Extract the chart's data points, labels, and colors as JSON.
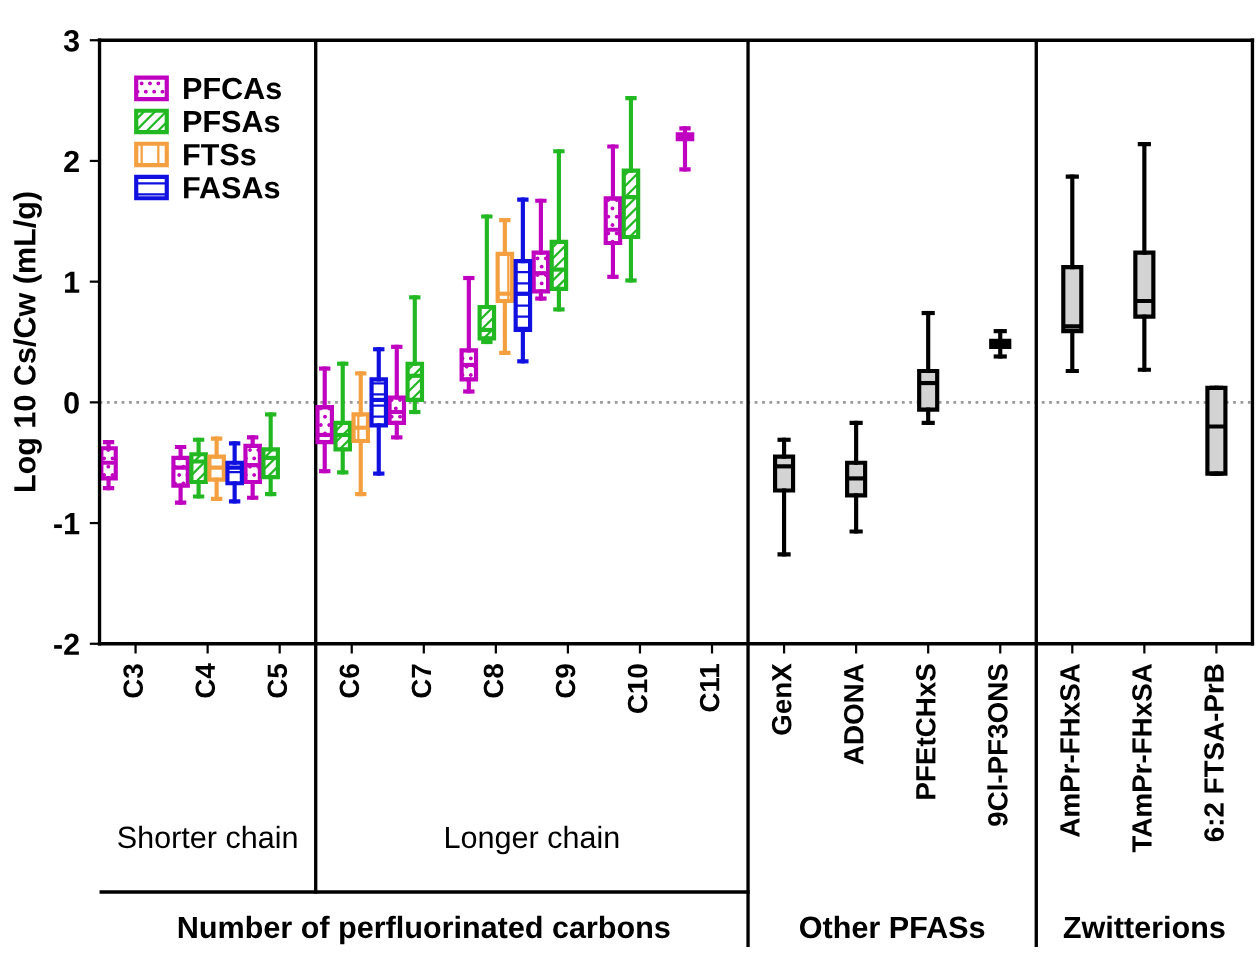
{
  "chart_data": {
    "type": "box",
    "ylabel": "Log 10 Cs/Cw (mL/g)",
    "categories": [
      "C3",
      "C4",
      "C5",
      "C6",
      "C7",
      "C8",
      "C9",
      "C10",
      "C11",
      "GenX",
      "ADONA",
      "PFEtCHxS",
      "9Cl-PF3ONS",
      "AmPr-FHxSA",
      "TAmPr-FHxSA",
      "6:2 FTSA-PrB"
    ],
    "ylim": [
      -2,
      3
    ],
    "yticks": [
      -2,
      -1,
      0,
      1,
      2,
      3
    ],
    "grid": false,
    "legend": "top left",
    "series": [
      {
        "name": "PFCAs",
        "color": "#c000c0",
        "boxes": [
          {
            "low": -0.71,
            "q1": -0.63,
            "median": -0.5,
            "q3": -0.38,
            "high": -0.33
          },
          {
            "low": -0.83,
            "q1": -0.69,
            "median": -0.54,
            "q3": -0.46,
            "high": -0.37
          },
          {
            "low": -0.79,
            "q1": -0.66,
            "median": -0.52,
            "q3": -0.36,
            "high": -0.29
          },
          {
            "low": -0.57,
            "q1": -0.33,
            "median": -0.27,
            "q3": -0.04,
            "high": 0.28
          },
          {
            "low": -0.29,
            "q1": -0.17,
            "median": -0.08,
            "q3": 0.04,
            "high": 0.46
          },
          {
            "low": 0.09,
            "q1": 0.19,
            "median": 0.31,
            "q3": 0.43,
            "high": 1.03
          },
          {
            "low": 0.86,
            "q1": 0.92,
            "median": 1.07,
            "q3": 1.24,
            "high": 1.67
          },
          {
            "low": 1.04,
            "q1": 1.32,
            "median": 1.43,
            "q3": 1.69,
            "high": 2.12
          },
          {
            "low": 1.93,
            "q1": 2.18,
            "median": 2.2,
            "q3": 2.22,
            "high": 2.27
          },
          null,
          null,
          null,
          null,
          null,
          null,
          null
        ]
      },
      {
        "name": "PFSAs",
        "color": "#22b822",
        "boxes": [
          null,
          {
            "low": -0.78,
            "q1": -0.66,
            "median": -0.49,
            "q3": -0.43,
            "high": -0.31
          },
          {
            "low": -0.76,
            "q1": -0.62,
            "median": -0.46,
            "q3": -0.39,
            "high": -0.1
          },
          {
            "low": -0.58,
            "q1": -0.39,
            "median": -0.27,
            "q3": -0.17,
            "high": 0.32
          },
          {
            "low": -0.08,
            "q1": 0.02,
            "median": 0.22,
            "q3": 0.32,
            "high": 0.87
          },
          {
            "low": 0.5,
            "q1": 0.53,
            "median": 0.6,
            "q3": 0.79,
            "high": 1.54
          },
          {
            "low": 0.77,
            "q1": 0.94,
            "median": 1.1,
            "q3": 1.33,
            "high": 2.08
          },
          {
            "low": 1.01,
            "q1": 1.37,
            "median": 1.7,
            "q3": 1.92,
            "high": 2.52
          },
          null,
          null,
          null,
          null,
          null,
          null,
          null,
          null
        ]
      },
      {
        "name": "FTSs",
        "color": "#f5a040",
        "boxes": [
          null,
          {
            "low": -0.8,
            "q1": -0.64,
            "median": -0.54,
            "q3": -0.45,
            "high": -0.3
          },
          null,
          {
            "low": -0.76,
            "q1": -0.32,
            "median": -0.21,
            "q3": -0.1,
            "high": 0.24
          },
          null,
          {
            "low": 0.41,
            "q1": 0.84,
            "median": 0.9,
            "q3": 1.23,
            "high": 1.51
          },
          null,
          null,
          null,
          null,
          null,
          null,
          null,
          null,
          null,
          null
        ]
      },
      {
        "name": "FASAs",
        "color": "#1010e0",
        "boxes": [
          null,
          {
            "low": -0.82,
            "q1": -0.67,
            "median": -0.54,
            "q3": -0.5,
            "high": -0.34
          },
          null,
          {
            "low": -0.59,
            "q1": -0.19,
            "median": 0.02,
            "q3": 0.19,
            "high": 0.44
          },
          null,
          {
            "low": 0.34,
            "q1": 0.6,
            "median": 0.9,
            "q3": 1.17,
            "high": 1.68
          },
          null,
          null,
          null,
          null,
          null,
          null,
          null,
          null,
          null,
          null
        ]
      },
      {
        "color": "#d3d3d3",
        "boxes": [
          null,
          null,
          null,
          null,
          null,
          null,
          null,
          null,
          null,
          {
            "low": -1.26,
            "q1": -0.73,
            "median": -0.53,
            "q3": -0.45,
            "high": -0.31
          },
          {
            "low": -1.07,
            "q1": -0.77,
            "median": -0.63,
            "q3": -0.5,
            "high": -0.17
          },
          {
            "low": -0.17,
            "q1": -0.06,
            "median": 0.16,
            "q3": 0.26,
            "high": 0.74
          },
          {
            "low": 0.38,
            "q1": 0.46,
            "median": 0.48,
            "q3": 0.51,
            "high": 0.59
          },
          {
            "low": 0.26,
            "q1": 0.59,
            "median": 0.63,
            "q3": 1.12,
            "high": 1.87
          },
          {
            "low": 0.27,
            "q1": 0.71,
            "median": 0.84,
            "q3": 1.24,
            "high": 2.14
          },
          {
            "low": -0.59,
            "q1": -0.59,
            "median": -0.2,
            "q3": 0.12,
            "high": 0.12
          }
        ]
      }
    ],
    "ref_lines": [
      {
        "axis": "y",
        "value": 0,
        "color": "#999999",
        "line_style": "dotted"
      }
    ],
    "annotations": [
      "Shorter chain",
      "Longer chain",
      "Number of perfluorinated carbons",
      "Other PFASs",
      "Zwitterions"
    ]
  }
}
